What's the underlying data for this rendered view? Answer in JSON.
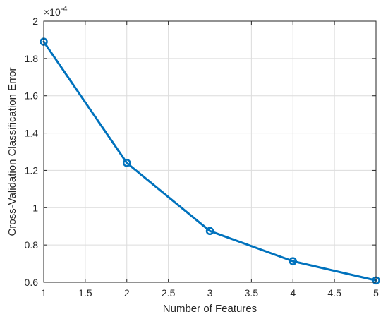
{
  "chart_data": {
    "type": "line",
    "title": "",
    "xlabel": "Number of Features",
    "ylabel": "Cross-Validation Classification Error",
    "exponent_label": {
      "base": "×10",
      "power": "-4"
    },
    "x": [
      1,
      2,
      3,
      4,
      5
    ],
    "series": [
      {
        "values": [
          1.89,
          1.24,
          0.875,
          0.713,
          0.61
        ],
        "color": "#0072BD",
        "marker": "circle"
      }
    ],
    "xlim": [
      1,
      5
    ],
    "ylim": [
      0.6,
      2.0
    ],
    "xticks": [
      1,
      1.5,
      2,
      2.5,
      3,
      3.5,
      4,
      4.5,
      5
    ],
    "xtick_labels": [
      "1",
      "1.5",
      "2",
      "2.5",
      "3",
      "3.5",
      "4",
      "4.5",
      "5"
    ],
    "yticks": [
      0.6,
      0.8,
      1.0,
      1.2,
      1.4,
      1.6,
      1.8,
      2.0
    ],
    "ytick_labels": [
      "0.6",
      "0.8",
      "1",
      "1.2",
      "1.4",
      "1.6",
      "1.8",
      "2"
    ],
    "grid": true,
    "legend": "none",
    "colors": {
      "axis": "#262626",
      "grid": "#dcdcdc",
      "line": "#0072BD"
    }
  }
}
